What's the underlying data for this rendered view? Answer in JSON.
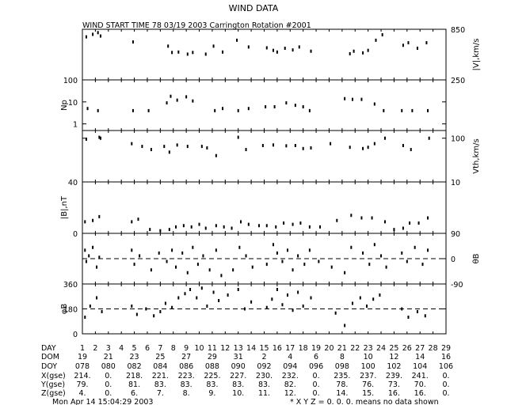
{
  "figure": {
    "title": "WIND DATA",
    "header": "WIND START TIME  78 03/19 2003 Carrington Rotation #2001",
    "footer_time": "Mon Apr 14 15:04:29 2003",
    "footer_note": "* X Y Z = 0. 0. 0. means no data shown"
  },
  "chart_data": [
    {
      "type": "scatter",
      "ylabel": "|V|,km/s",
      "ylabel_side": "right",
      "ylim": [
        250,
        850
      ],
      "y_ticks": [
        "850",
        "250"
      ],
      "y_tick_side": "right",
      "dashed_ref": null,
      "series": [
        {
          "x": [
            1.3,
            1.8,
            2.2,
            2.4,
            4.9,
            7.6,
            7.9,
            8.4,
            9.1,
            9.5,
            10.5,
            11.1,
            11.8,
            12.9,
            13.8,
            15.2,
            15.7,
            16.0,
            16.6,
            17.2,
            17.7,
            18.6,
            21.6,
            21.9,
            22.6,
            23.0,
            23.6,
            24.1,
            25.7,
            26.1,
            26.8,
            27.5
          ],
          "y": [
            760,
            790,
            810,
            770,
            700,
            650,
            575,
            580,
            555,
            575,
            555,
            650,
            580,
            720,
            640,
            630,
            600,
            580,
            625,
            605,
            640,
            590,
            560,
            590,
            570,
            600,
            720,
            785,
            660,
            690,
            625,
            690
          ]
        }
      ]
    },
    {
      "type": "scatter",
      "ylabel": "Np",
      "ylabel_side": "left",
      "ylim": [
        0.5,
        100
      ],
      "scale": "log",
      "y_ticks": [
        "100",
        "10",
        "1"
      ],
      "y_tick_side": "left",
      "dashed_ref": null,
      "series": [
        {
          "x": [
            1.4,
            2.2,
            4.9,
            6.1,
            7.5,
            7.8,
            8.3,
            9.0,
            9.5,
            11.2,
            11.8,
            13.0,
            13.8,
            15.1,
            15.8,
            16.7,
            17.4,
            18.0,
            18.5,
            21.2,
            21.8,
            22.5,
            23.5,
            24.2,
            25.6,
            26.4,
            27.6
          ],
          "y": [
            5,
            4,
            4,
            4,
            9,
            18,
            12,
            17,
            11,
            4,
            5,
            4,
            5,
            6,
            6,
            9,
            7,
            6,
            4,
            14,
            13,
            13,
            8,
            4,
            4,
            4,
            4
          ]
        }
      ]
    },
    {
      "type": "scatter",
      "ylabel": "Vth,km/s",
      "ylabel_side": "right",
      "ylim": [
        10,
        150
      ],
      "scale": "log",
      "y_ticks": [
        "100",
        "10"
      ],
      "y_tick_side": "right",
      "dashed_ref": null,
      "series": [
        {
          "x": [
            1.3,
            2.3,
            2.4,
            4.8,
            5.6,
            6.3,
            7.3,
            7.7,
            8.3,
            9.1,
            10.2,
            10.6,
            11.3,
            13.0,
            13.6,
            14.9,
            15.7,
            16.7,
            17.4,
            18.0,
            18.6,
            20.1,
            21.6,
            22.6,
            23.0,
            23.5,
            24.3,
            25.7,
            26.3,
            27.7
          ],
          "y": [
            95,
            105,
            100,
            75,
            65,
            55,
            65,
            48,
            70,
            65,
            65,
            60,
            40,
            105,
            55,
            68,
            70,
            67,
            68,
            58,
            60,
            75,
            62,
            58,
            62,
            75,
            100,
            68,
            55,
            100
          ]
        }
      ]
    },
    {
      "type": "scatter",
      "ylabel": "|B|,nT",
      "ylabel_side": "left",
      "ylim": [
        0,
        40
      ],
      "y_ticks": [
        "40",
        "0"
      ],
      "y_tick_side": "left",
      "dashed_ref": null,
      "series": [
        {
          "x": [
            1.2,
            1.8,
            2.3,
            4.8,
            5.3,
            6.2,
            7.0,
            7.7,
            8.2,
            8.8,
            9.4,
            10.0,
            10.5,
            11.3,
            11.9,
            12.5,
            13.2,
            13.8,
            14.6,
            15.2,
            15.9,
            16.5,
            17.2,
            17.8,
            18.5,
            19.3,
            20.6,
            21.7,
            22.5,
            23.3,
            24.3,
            25.0,
            25.7,
            26.2,
            26.9,
            27.6
          ],
          "y": [
            9,
            10,
            13,
            9,
            11,
            3,
            2,
            3,
            5,
            6,
            5,
            7,
            4,
            6,
            5,
            4,
            9,
            7,
            6,
            6,
            5,
            8,
            7,
            8,
            5,
            5,
            10,
            14,
            12,
            12,
            9,
            3,
            4,
            8,
            8,
            12
          ]
        }
      ]
    },
    {
      "type": "scatter",
      "ylabel": "θB",
      "ylabel_side": "right",
      "ylim": [
        -90,
        90
      ],
      "y_ticks": [
        "90",
        "0",
        "-90"
      ],
      "y_tick_side": "right",
      "dashed_ref": 0,
      "series": [
        {
          "x": [
            1.2,
            1.3,
            1.5,
            1.8,
            2.1,
            2.3,
            4.8,
            5.0,
            5.4,
            6.3,
            6.9,
            7.5,
            7.9,
            8.2,
            8.7,
            9.1,
            9.5,
            9.9,
            10.3,
            10.8,
            11.3,
            11.7,
            12.6,
            13.1,
            13.6,
            14.1,
            15.2,
            15.7,
            16.0,
            16.4,
            16.8,
            17.2,
            17.6,
            18.1,
            18.5,
            19.2,
            20.2,
            21.2,
            21.7,
            22.6,
            23.1,
            23.5,
            24.0,
            24.4,
            25.6,
            26.0,
            26.6,
            27.2,
            27.6
          ],
          "y": [
            30,
            -10,
            10,
            40,
            -30,
            5,
            30,
            -20,
            10,
            -40,
            20,
            -10,
            30,
            -30,
            20,
            -50,
            40,
            -20,
            10,
            -40,
            30,
            -60,
            -40,
            40,
            10,
            -30,
            -20,
            50,
            20,
            -10,
            30,
            -40,
            10,
            -20,
            30,
            -10,
            -30,
            -50,
            40,
            20,
            -20,
            50,
            10,
            -30,
            20,
            -10,
            40,
            -20,
            30
          ]
        }
      ]
    },
    {
      "type": "scatter",
      "ylabel": "φB",
      "ylabel_side": "left",
      "ylim": [
        0,
        360
      ],
      "y_ticks": [
        "360",
        "180",
        "0"
      ],
      "y_tick_side": "left",
      "dashed_ref": 180,
      "series": [
        {
          "x": [
            1.2,
            1.6,
            2.1,
            2.5,
            4.8,
            5.2,
            5.9,
            6.5,
            7.0,
            7.4,
            7.9,
            8.4,
            8.9,
            9.3,
            9.8,
            10.2,
            10.6,
            11.1,
            11.5,
            12.2,
            13.0,
            13.5,
            14.0,
            15.2,
            15.6,
            16.0,
            16.4,
            16.8,
            17.2,
            17.6,
            18.0,
            18.6,
            20.5,
            21.2,
            21.8,
            22.4,
            22.9,
            23.4,
            23.9,
            25.6,
            26.1,
            26.8,
            27.4
          ],
          "y": [
            120,
            200,
            260,
            160,
            200,
            140,
            180,
            130,
            160,
            220,
            190,
            260,
            290,
            320,
            260,
            330,
            200,
            300,
            240,
            280,
            320,
            180,
            230,
            190,
            250,
            320,
            210,
            280,
            170,
            300,
            200,
            260,
            150,
            60,
            220,
            260,
            200,
            250,
            280,
            180,
            120,
            160,
            130
          ]
        }
      ]
    }
  ],
  "table": {
    "row_labels": [
      "DAY",
      "DOM",
      "DOY",
      "X(gse)",
      "Y(gse)",
      "Z(gse)"
    ],
    "columns": [
      [
        "1",
        "19",
        "078",
        "214.",
        "79.",
        "4."
      ],
      [
        "2",
        "",
        "",
        "",
        "",
        ""
      ],
      [
        "3",
        "21",
        "080",
        "0.",
        "0.",
        "0."
      ],
      [
        "4",
        "",
        "",
        "",
        "",
        ""
      ],
      [
        "5",
        "23",
        "082",
        "218.",
        "81.",
        "6."
      ],
      [
        "6",
        "",
        "",
        "",
        "",
        ""
      ],
      [
        "7",
        "25",
        "084",
        "221.",
        "83.",
        "7."
      ],
      [
        "8",
        "",
        "",
        "",
        "",
        ""
      ],
      [
        "9",
        "27",
        "086",
        "223.",
        "83.",
        "8."
      ],
      [
        "10",
        "",
        "",
        "",
        "",
        ""
      ],
      [
        "11",
        "29",
        "088",
        "225.",
        "83.",
        "9."
      ],
      [
        "12",
        "",
        "",
        "",
        "",
        ""
      ],
      [
        "13",
        "31",
        "090",
        "227.",
        "83.",
        "10."
      ],
      [
        "14",
        "",
        "",
        "",
        "",
        ""
      ],
      [
        "15",
        "2",
        "092",
        "230.",
        "83.",
        "11."
      ],
      [
        "16",
        "",
        "",
        "",
        "",
        ""
      ],
      [
        "17",
        "4",
        "094",
        "232.",
        "82.",
        "12."
      ],
      [
        "18",
        "",
        "",
        "",
        "",
        ""
      ],
      [
        "19",
        "6",
        "096",
        "0.",
        "0.",
        "0."
      ],
      [
        "20",
        "",
        "",
        "",
        "",
        ""
      ],
      [
        "21",
        "8",
        "098",
        "235.",
        "78.",
        "14."
      ],
      [
        "22",
        "",
        "",
        "",
        "",
        ""
      ],
      [
        "23",
        "10",
        "100",
        "237.",
        "76.",
        "15."
      ],
      [
        "24",
        "",
        "",
        "",
        "",
        ""
      ],
      [
        "25",
        "12",
        "102",
        "239.",
        "73.",
        "16."
      ],
      [
        "26",
        "",
        "",
        "",
        "",
        ""
      ],
      [
        "27",
        "14",
        "104",
        "241.",
        "70.",
        "16."
      ],
      [
        "28",
        "",
        "",
        "",
        "",
        ""
      ],
      [
        "29",
        "16",
        "106",
        "0.",
        "0.",
        "0."
      ]
    ]
  }
}
